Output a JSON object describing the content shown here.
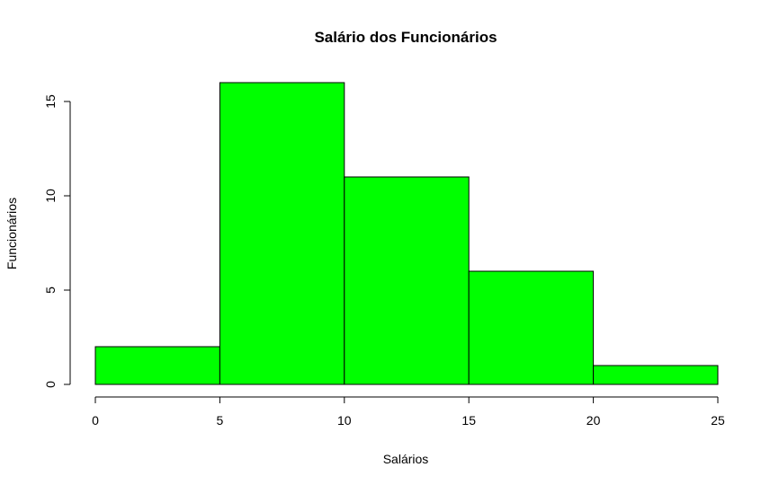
{
  "chart_data": {
    "type": "bar",
    "title": "Salário dos Funcionários",
    "xlabel": "Salários",
    "ylabel": "Funcionários",
    "bins": [
      {
        "x0": 0,
        "x1": 5,
        "count": 2
      },
      {
        "x0": 5,
        "x1": 10,
        "count": 16
      },
      {
        "x0": 10,
        "x1": 15,
        "count": 11
      },
      {
        "x0": 15,
        "x1": 20,
        "count": 6
      },
      {
        "x0": 20,
        "x1": 25,
        "count": 1
      }
    ],
    "xlim": [
      0,
      25
    ],
    "ylim": [
      0,
      16
    ],
    "x_ticks": [
      "0",
      "5",
      "10",
      "15",
      "20",
      "25"
    ],
    "y_ticks": [
      "0",
      "5",
      "10",
      "15"
    ],
    "bar_color": "#00ff00",
    "grid": false,
    "legend": "none"
  }
}
